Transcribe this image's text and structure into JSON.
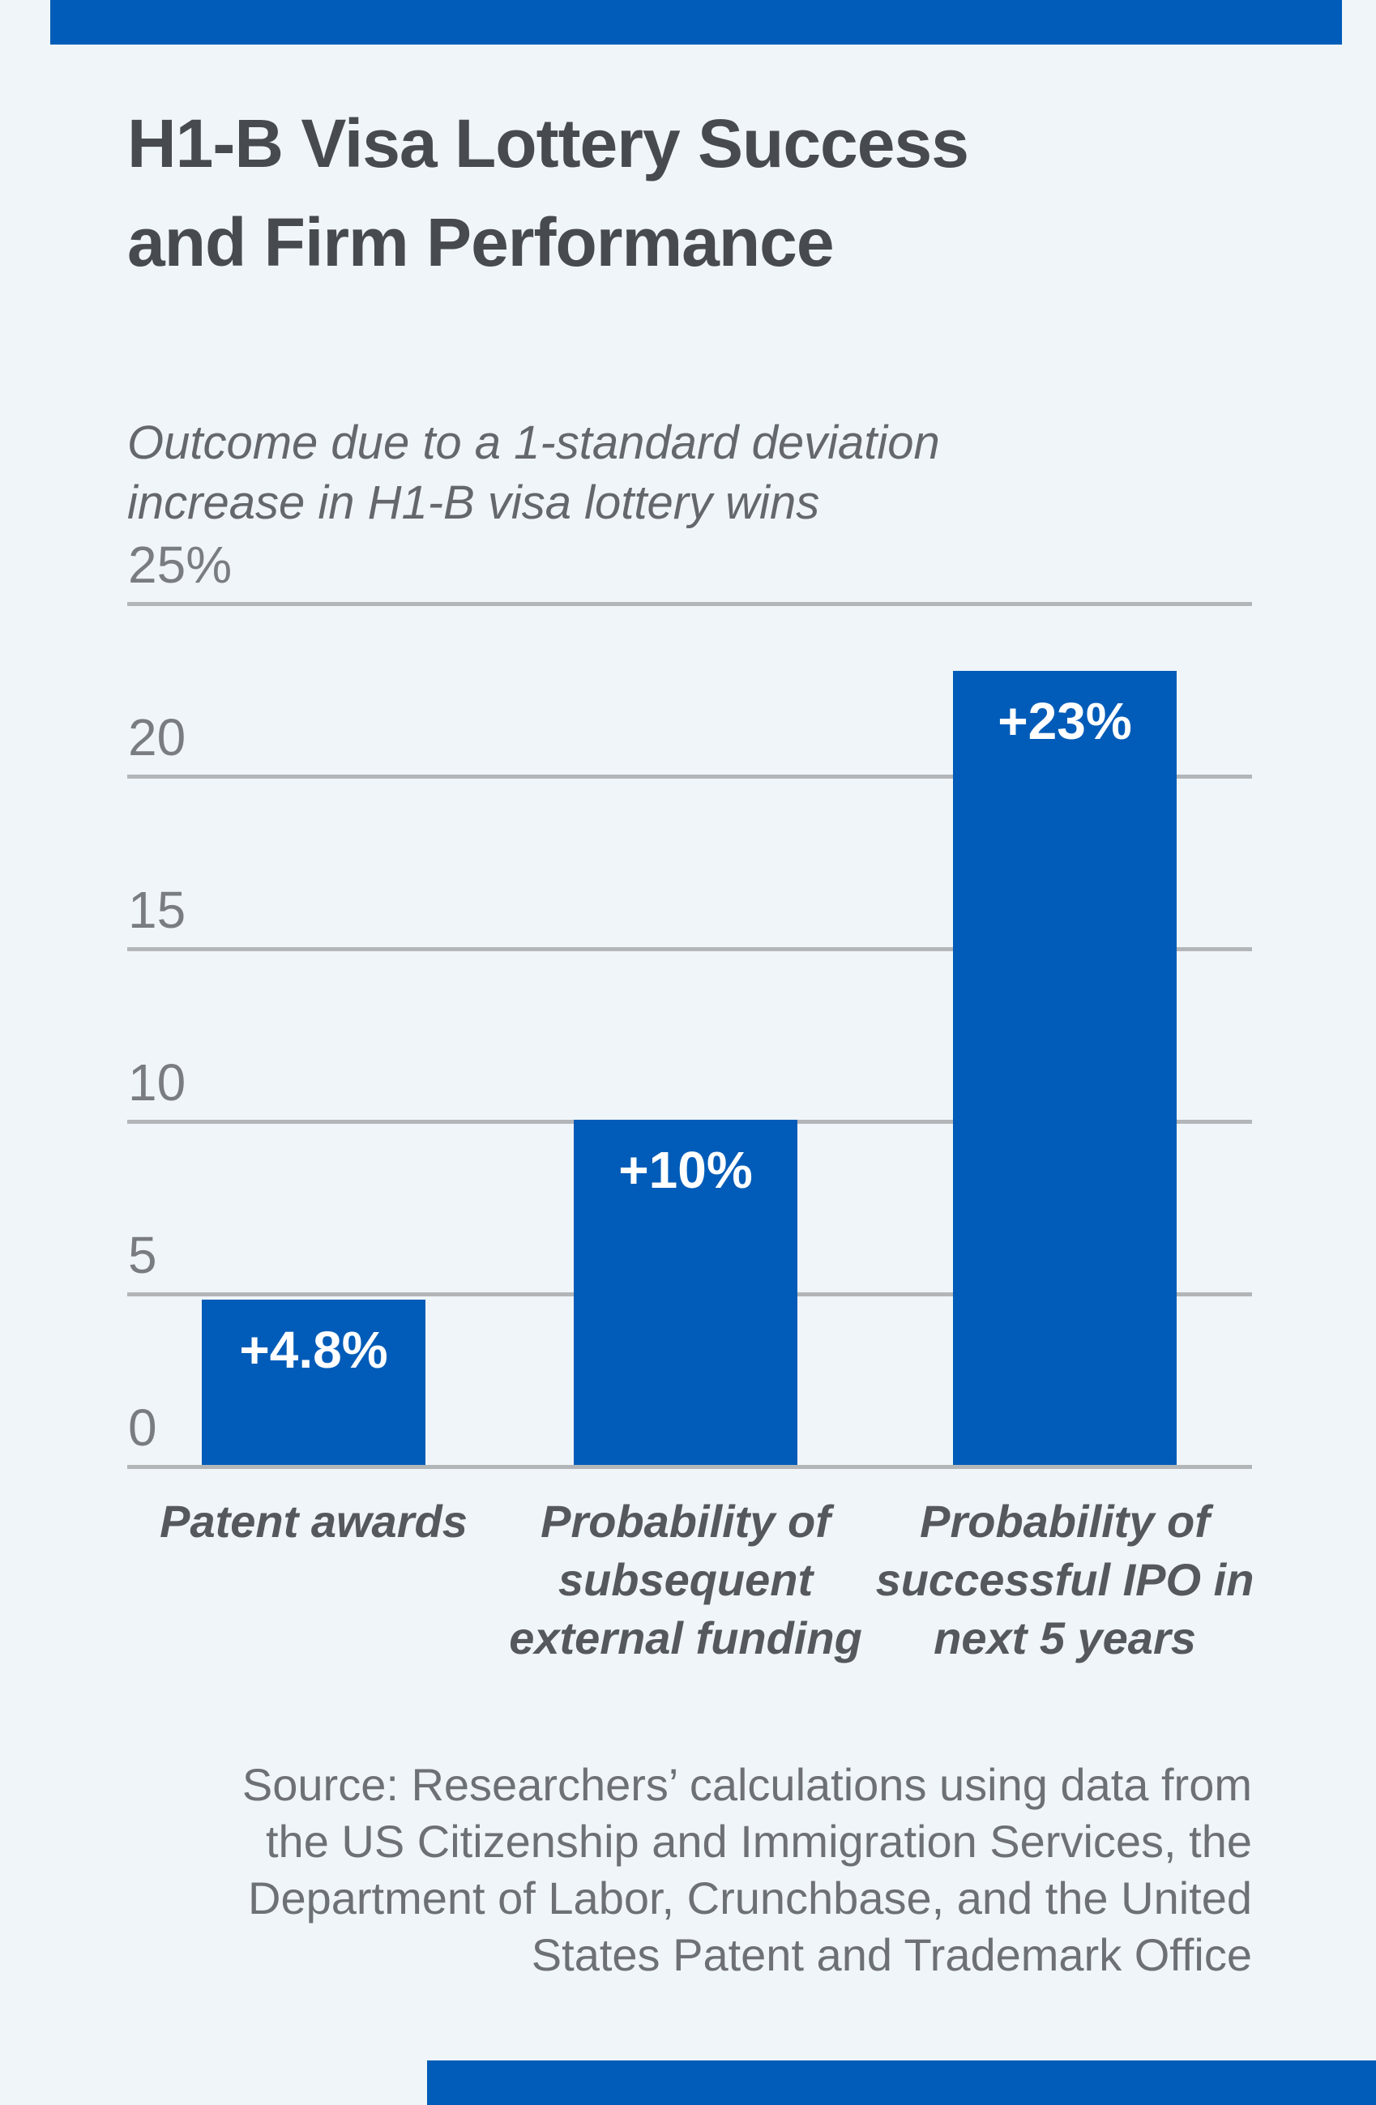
{
  "page": {
    "background_color": "#f0f5f9",
    "accent_color": "#005cb8",
    "gridline_color": "#b3b6b9"
  },
  "header": {
    "title": "H1-B Visa Lottery Success\nand Firm Performance"
  },
  "chart": {
    "subtitle": "Outcome due to a 1-standard deviation\nincrease in H1-B visa lottery wins",
    "y_axis": {
      "ticks": [
        {
          "label": "25%",
          "value": 25
        },
        {
          "label": "20",
          "value": 20
        },
        {
          "label": "15",
          "value": 15
        },
        {
          "label": "10",
          "value": 10
        },
        {
          "label": "5",
          "value": 5
        },
        {
          "label": "0",
          "value": 0
        }
      ]
    },
    "bars": [
      {
        "value_label": "+4.8%",
        "value": 4.8,
        "category": "Patent awards"
      },
      {
        "value_label": "+10%",
        "value": 10,
        "category": "Probability of\nsubsequent\nexternal funding"
      },
      {
        "value_label": "+23%",
        "value": 23,
        "category": "Probability of\nsuccessful IPO in\nnext 5 years"
      }
    ]
  },
  "chart_data": {
    "type": "bar",
    "title": "H1-B Visa Lottery Success and Firm Performance",
    "subtitle": "Outcome due to a 1-standard deviation increase in H1-B visa lottery wins",
    "categories": [
      "Patent awards",
      "Probability of subsequent external funding",
      "Probability of successful IPO in next 5 years"
    ],
    "values": [
      4.8,
      10,
      23
    ],
    "data_labels": [
      "+4.8%",
      "+10%",
      "+23%"
    ],
    "xlabel": "",
    "ylabel": "",
    "ylim": [
      0,
      25
    ],
    "y_ticks": [
      25,
      20,
      15,
      10,
      5,
      0
    ],
    "y_tick_labels": [
      "25%",
      "20",
      "15",
      "10",
      "5",
      "0"
    ],
    "grid": true,
    "legend": false,
    "bar_color": "#005cb8",
    "source": "Source: Researchers’ calculations using data from the US Citizenship and Immigration Services, the Department of Labor, Crunchbase, and the United States Patent and Trademark Office"
  },
  "footer": {
    "source_text": "Source: Researchers’ calculations using data from\nthe US Citizenship and Immigration Services, the\nDepartment of Labor, Crunchbase, and the United\nStates Patent and Trademark Office"
  }
}
